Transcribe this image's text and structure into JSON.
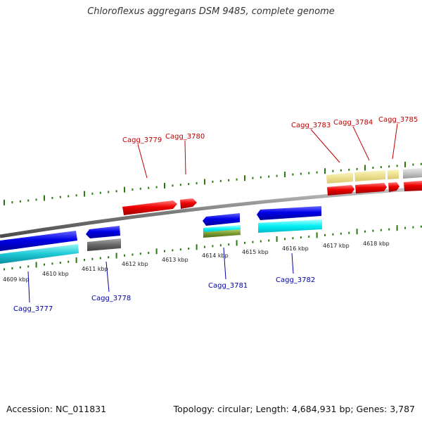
{
  "title": "Chloroflexus aggregans DSM 9485, complete genome",
  "footer": {
    "accession": "Accession: NC_011831",
    "summary": "Topology: circular; Length: 4,684,931 bp; Genes: 3,787"
  },
  "colors": {
    "forward_gene": "#e00000",
    "reverse_gene": "#0000dd",
    "cyan_feature": "#00e8f0",
    "grey_feature": "#606060",
    "olive_feature": "#7a9a30",
    "pale_feature": "#ede39a",
    "tick": "#2a7a10",
    "forward_label": "#c00000",
    "reverse_label": "#0000aa"
  },
  "kbp_labels": [
    "4609 kbp",
    "4610 kbp",
    "4611 kbp",
    "4612 kbp",
    "4613 kbp",
    "4614 kbp",
    "4615 kbp",
    "4616 kbp",
    "4617 kbp",
    "4618 kbp"
  ],
  "forward_genes": [
    "Cagg_3779",
    "Cagg_3780",
    "Cagg_3783",
    "Cagg_3784",
    "Cagg_3785"
  ],
  "reverse_genes": [
    "Cagg_3777",
    "Cagg_3778",
    "Cagg_3781",
    "Cagg_3782"
  ]
}
